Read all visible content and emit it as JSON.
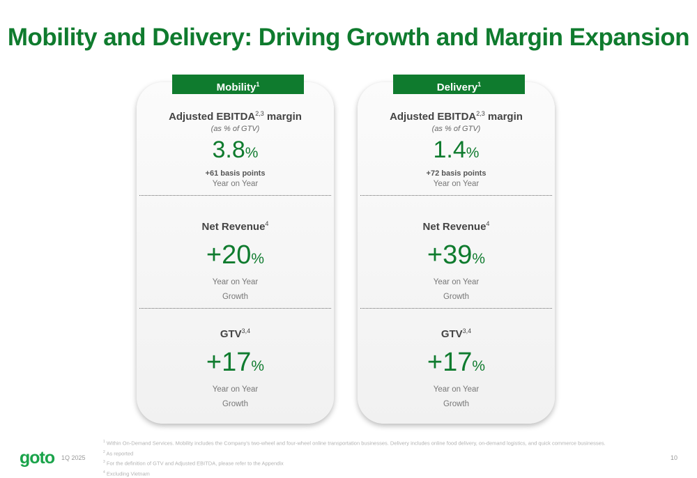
{
  "title": "Mobility and Delivery: Driving Growth and Margin Expansion",
  "cards": [
    {
      "tab": "Mobility",
      "tab_sup": "1",
      "ebitda": {
        "label": "Adjusted EBITDA",
        "label_sup": "2,3",
        "label_suffix": " margin",
        "paren": "(as % of GTV)",
        "value": "3.8",
        "unit": "%",
        "bp": "+61 basis points",
        "sub": "Year on Year"
      },
      "revenue": {
        "label": "Net Revenue",
        "label_sup": "4",
        "value": "+20",
        "unit": "%",
        "sub1": "Year on Year",
        "sub2": "Growth"
      },
      "gtv": {
        "label": "GTV",
        "label_sup": "3,4",
        "value": "+17",
        "unit": "%",
        "sub1": "Year on Year",
        "sub2": "Growth"
      }
    },
    {
      "tab": "Delivery",
      "tab_sup": "1",
      "ebitda": {
        "label": "Adjusted EBITDA",
        "label_sup": "2,3",
        "label_suffix": " margin",
        "paren": "(as % of GTV)",
        "value": "1.4",
        "unit": "%",
        "bp": "+72 basis points",
        "sub": "Year on Year"
      },
      "revenue": {
        "label": "Net Revenue",
        "label_sup": "4",
        "value": "+39",
        "unit": "%",
        "sub1": "Year on Year",
        "sub2": "Growth"
      },
      "gtv": {
        "label": "GTV",
        "label_sup": "3,4",
        "value": "+17",
        "unit": "%",
        "sub1": "Year on Year",
        "sub2": "Growth"
      }
    }
  ],
  "footnotes": [
    {
      "num": "1",
      "text": "Within On-Demand Services. Mobility includes the Company's two-wheel and four-wheel online transportation businesses. Delivery includes online food delivery, on-demand logistics, and quick commerce businesses."
    },
    {
      "num": "2",
      "text": "As reported"
    },
    {
      "num": "3",
      "text": "For the definition of GTV and Adjusted EBITDA, please refer to the Appendix"
    },
    {
      "num": "4",
      "text": "Excluding Vietnam"
    }
  ],
  "logo": "goto",
  "period": "1Q 2025",
  "page_number": "10",
  "colors": {
    "brand_green": "#0f7b2e",
    "logo_green": "#1aa34a"
  }
}
